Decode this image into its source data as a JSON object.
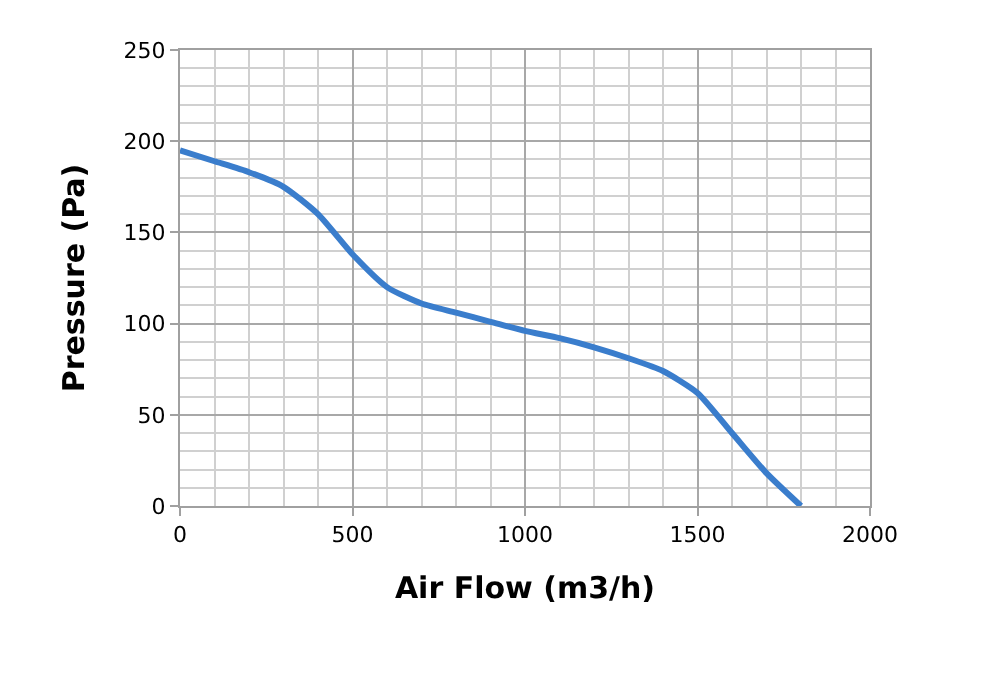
{
  "chart_data": {
    "type": "line",
    "xlabel": "Air Flow (m3/h)",
    "ylabel": "Pressure (Pa)",
    "x": [
      0,
      100,
      200,
      300,
      400,
      500,
      600,
      700,
      800,
      900,
      1000,
      1100,
      1200,
      1300,
      1400,
      1500,
      1600,
      1700,
      1800
    ],
    "series": [
      {
        "color": "#3a7dcc",
        "values": [
          195,
          189,
          183,
          175,
          160,
          138,
          120,
          111,
          106,
          101,
          96,
          92,
          87,
          81,
          74,
          62,
          40,
          18,
          0
        ]
      }
    ],
    "xlim": [
      0,
      2000
    ],
    "xticks": [
      0,
      500,
      1000,
      1500,
      2000
    ],
    "ylim": [
      0,
      250
    ],
    "yticks": [
      0,
      50,
      100,
      150,
      200,
      250
    ],
    "grid": true,
    "legend": false,
    "marker": "none",
    "line_style": "solid"
  }
}
